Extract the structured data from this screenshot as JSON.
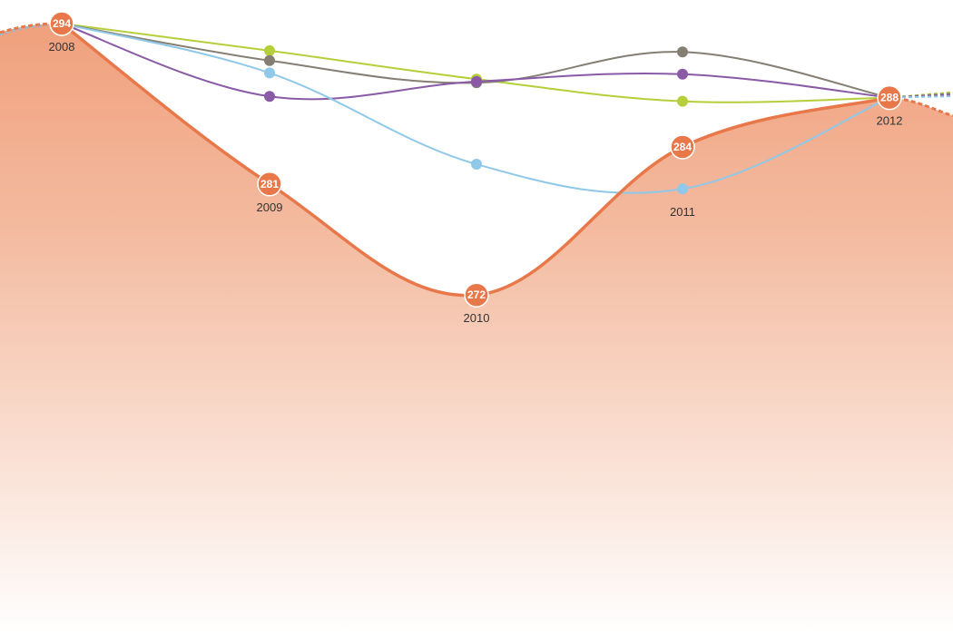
{
  "chart_data": {
    "type": "line",
    "categories": [
      "2008",
      "2009",
      "2010",
      "2011",
      "2012"
    ],
    "grid": false,
    "legend": "none",
    "main_series": {
      "values": [
        294,
        281,
        272,
        284,
        288
      ],
      "color": "#e8784a",
      "area_fill": "#f0a07c"
    },
    "series": [
      {
        "values": [
          294,
          291.8,
          289.5,
          287.7,
          288
        ],
        "color": "#b5cf3a"
      },
      {
        "values": [
          294,
          291.0,
          289.2,
          291.7,
          288
        ],
        "color": "#857f73"
      },
      {
        "values": [
          294,
          288.1,
          289.3,
          289.9,
          288
        ],
        "color": "#8a5aa6"
      },
      {
        "values": [
          294,
          290.0,
          282.6,
          280.6,
          288
        ],
        "color": "#8fc8e8"
      }
    ]
  }
}
